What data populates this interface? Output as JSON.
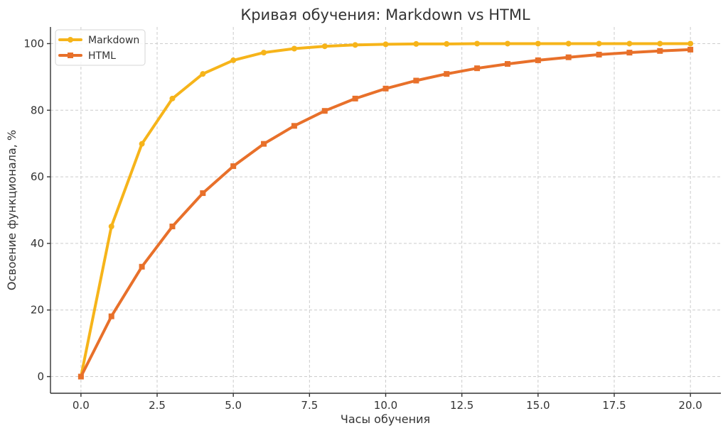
{
  "chart_data": {
    "type": "line",
    "title": "Кривая обучения: Markdown vs HTML",
    "xlabel": "Часы обучения",
    "ylabel": "Освоение функционала, %",
    "xlim": [
      -1,
      21
    ],
    "ylim": [
      -5,
      105
    ],
    "xticks": [
      0,
      2.5,
      5,
      7.5,
      10,
      12.5,
      15,
      17.5,
      20
    ],
    "xtick_labels": [
      "0.0",
      "2.5",
      "5.0",
      "7.5",
      "10.0",
      "12.5",
      "15.0",
      "17.5",
      "20.0"
    ],
    "yticks": [
      0,
      20,
      40,
      60,
      80,
      100
    ],
    "ytick_labels": [
      "0",
      "20",
      "40",
      "60",
      "80",
      "100"
    ],
    "grid": true,
    "legend_position": "top-left",
    "x": [
      0,
      1,
      2,
      3,
      4,
      5,
      6,
      7,
      8,
      9,
      10,
      11,
      12,
      13,
      14,
      15,
      16,
      17,
      18,
      19,
      20
    ],
    "series": [
      {
        "name": "Markdown",
        "color": "#F6B41A",
        "marker": "circle",
        "values": [
          0,
          45.1,
          69.9,
          83.5,
          90.9,
          95.0,
          97.3,
          98.5,
          99.2,
          99.6,
          99.8,
          99.9,
          99.9,
          100.0,
          100.0,
          100.0,
          100.0,
          100.0,
          100.0,
          100.0,
          100.0
        ]
      },
      {
        "name": "HTML",
        "color": "#E8702A",
        "marker": "square",
        "values": [
          0,
          18.1,
          33.0,
          45.1,
          55.1,
          63.2,
          69.9,
          75.3,
          79.8,
          83.5,
          86.5,
          88.9,
          90.9,
          92.6,
          93.9,
          95.0,
          95.9,
          96.7,
          97.3,
          97.8,
          98.2
        ]
      }
    ]
  }
}
